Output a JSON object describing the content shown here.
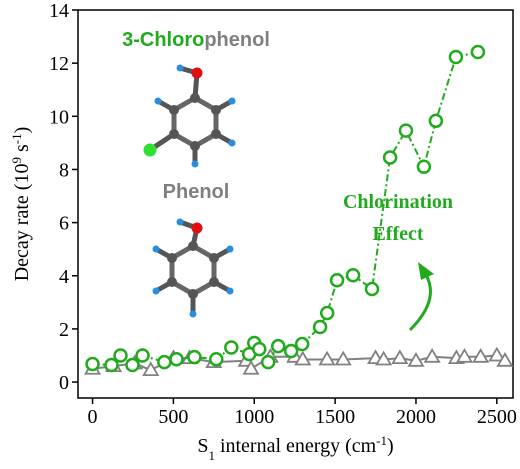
{
  "chart_data": {
    "type": "line",
    "ylabel_parts": [
      "Decay rate (10",
      "9",
      " s",
      "-1",
      ")"
    ],
    "xlabel_parts": [
      "S",
      "1",
      " internal energy (cm",
      "-1",
      ")"
    ],
    "annotations": [
      "Chlorination",
      "Effect"
    ],
    "xlim": [
      -90,
      2600
    ],
    "xticks": [
      0,
      500,
      1000,
      1500,
      2000,
      2500
    ],
    "ylim": [
      -0.6,
      14
    ],
    "yticks": [
      0,
      2,
      4,
      6,
      8,
      10,
      12,
      14
    ],
    "series": [
      {
        "name_parts": [
          "3-Chloro",
          "phenol"
        ],
        "color": "#22aa1e",
        "marker": "circle",
        "linestyle": "dashdot",
        "x": [
          0,
          117,
          173,
          247,
          309,
          444,
          519,
          630,
          765,
          858,
          969,
          1000,
          1031,
          1086,
          1148,
          1228,
          1296,
          1407,
          1451,
          1512,
          1611,
          1728,
          1840,
          1938,
          2049,
          2123,
          2247,
          2383
        ],
        "values": [
          0.68,
          0.64,
          1.0,
          0.64,
          1.0,
          0.75,
          0.86,
          0.94,
          0.86,
          1.3,
          1.05,
          1.47,
          1.24,
          0.75,
          1.35,
          1.17,
          1.43,
          2.07,
          2.6,
          3.83,
          4.02,
          3.5,
          8.45,
          9.46,
          8.1,
          9.83,
          12.23,
          12.42
        ]
      },
      {
        "name": "Phenol",
        "color": "#808080",
        "marker": "triangle",
        "linestyle": "solid",
        "x": [
          0,
          130,
          260,
          360,
          500,
          600,
          750,
          950,
          980,
          1100,
          1250,
          1300,
          1450,
          1550,
          1750,
          1800,
          1900,
          2000,
          2100,
          2250,
          2300,
          2400,
          2500,
          2550
        ],
        "values": [
          0.5,
          0.6,
          0.7,
          0.45,
          0.9,
          0.9,
          0.75,
          0.8,
          0.5,
          0.95,
          0.95,
          0.85,
          0.85,
          0.85,
          0.9,
          0.85,
          0.9,
          0.8,
          0.95,
          0.9,
          0.95,
          0.95,
          1.0,
          0.8
        ]
      }
    ]
  }
}
